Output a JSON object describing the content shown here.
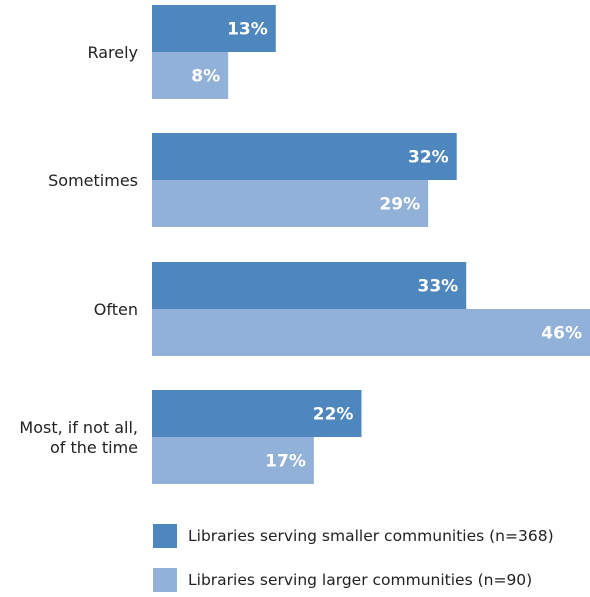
{
  "chart_data": {
    "type": "bar",
    "orientation": "horizontal",
    "categories": [
      "Rarely",
      "Sometimes",
      "Often",
      "Most, if not all,\nof the time"
    ],
    "series": [
      {
        "name": "Libraries serving smaller communities (n=368)",
        "values": [
          13,
          32,
          33,
          22
        ],
        "labels": [
          "13%",
          "32%",
          "33%",
          "22%"
        ],
        "color": "#4e86be"
      },
      {
        "name": "Libraries serving larger communities (n=90)",
        "values": [
          8,
          29,
          46,
          17
        ],
        "labels": [
          "8%",
          "29%",
          "46%",
          "17%"
        ],
        "color": "#91b1d8"
      }
    ],
    "xlim": [
      0,
      46
    ],
    "grid": false,
    "legend_position": "bottom"
  }
}
